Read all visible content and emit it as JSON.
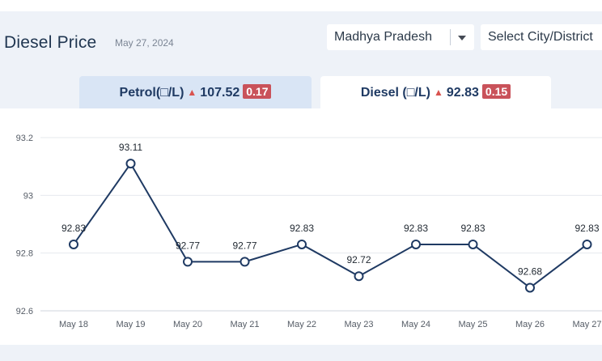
{
  "header": {
    "title": "Diesel Price",
    "date": "May 27, 2024"
  },
  "filters": {
    "state_value": "Madhya Pradesh",
    "city_placeholder": "Select City/District"
  },
  "tabs": [
    {
      "label": "Petrol(□/L)",
      "price": "107.52",
      "change": "0.17"
    },
    {
      "label": "Diesel (□/L)",
      "price": "92.83",
      "change": "0.15"
    }
  ],
  "icons": {
    "trend": "up-triangle-icon",
    "dropdown": "chevron-down-icon"
  },
  "colors": {
    "line": "#1f3a63",
    "up_indicator": "#d9534f",
    "badge": "#c9525a",
    "active_tab": "#ffffff",
    "inactive_tab": "#d9e5f5"
  },
  "chart_data": {
    "type": "line",
    "categories": [
      "May 18",
      "May 19",
      "May 20",
      "May 21",
      "May 22",
      "May 23",
      "May 24",
      "May 25",
      "May 26",
      "May 27"
    ],
    "values": [
      92.83,
      93.11,
      92.77,
      92.77,
      92.83,
      92.72,
      92.83,
      92.83,
      92.68,
      92.83
    ],
    "data_labels": [
      "92.83",
      "93.11",
      "92.77",
      "92.77",
      "92.83",
      "92.72",
      "92.83",
      "92.83",
      "92.68",
      "92.83"
    ],
    "yticks": [
      "93.2",
      "93",
      "92.8",
      "92.6"
    ],
    "ytick_values": [
      93.2,
      93.0,
      92.8,
      92.6
    ],
    "ylim": [
      92.6,
      93.2
    ],
    "grid": true,
    "markers": "hollow-circle"
  }
}
